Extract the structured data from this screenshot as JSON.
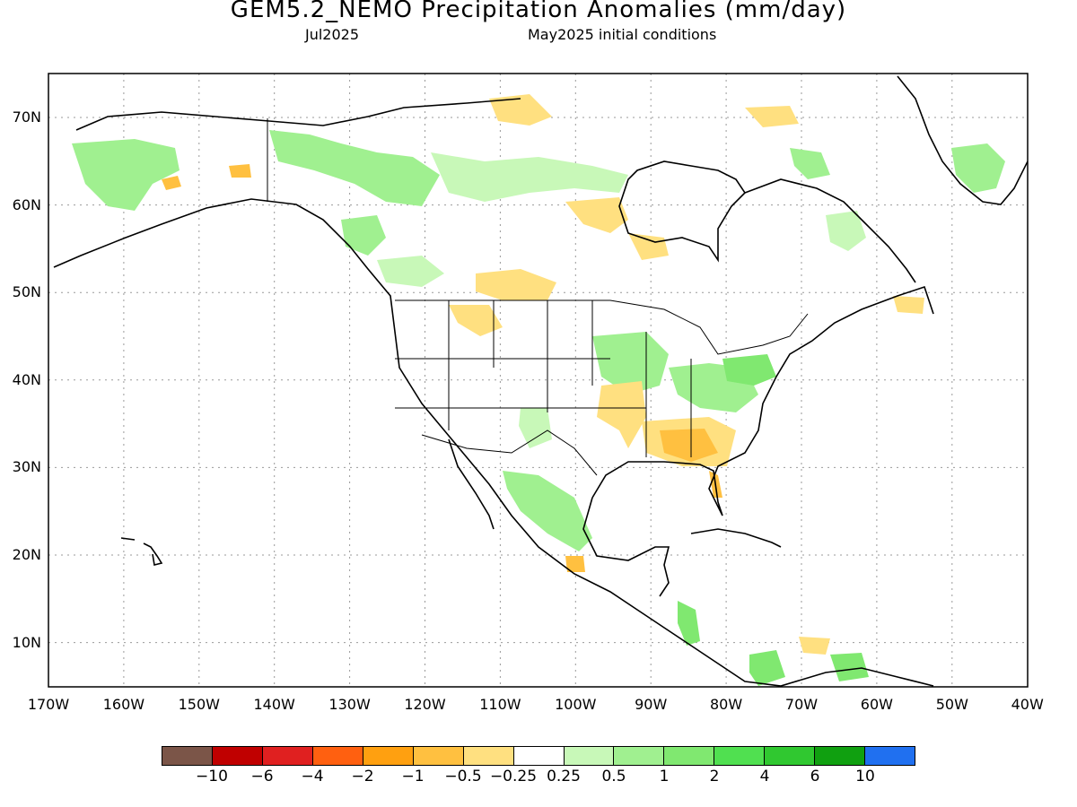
{
  "title": "GEM5.2_NEMO Precipitation Anomalies (mm/day)",
  "valid_month": "Jul2025",
  "init_conditions": "May2025 initial conditions",
  "lat_labels": [
    "70N",
    "60N",
    "50N",
    "40N",
    "30N",
    "20N",
    "10N"
  ],
  "lon_labels": [
    "170W",
    "160W",
    "150W",
    "140W",
    "130W",
    "120W",
    "110W",
    "100W",
    "90W",
    "80W",
    "70W",
    "60W",
    "50W",
    "40W"
  ],
  "colorbar": {
    "colors": [
      "#7b5548",
      "#c00000",
      "#e02020",
      "#ff6010",
      "#ffa010",
      "#ffc040",
      "#ffe080",
      "#ffffff",
      "#c8f8b8",
      "#a0f090",
      "#80e870",
      "#50e050",
      "#30c830",
      "#10a010",
      "#2070f0"
    ],
    "labels": [
      "−10",
      "−6",
      "−4",
      "−2",
      "−1",
      "−0.5",
      "−0.25",
      "0.25",
      "0.5",
      "1",
      "2",
      "4",
      "6",
      "10"
    ]
  },
  "colors": {
    "land_outline": "#000000",
    "grid": "#999999"
  }
}
